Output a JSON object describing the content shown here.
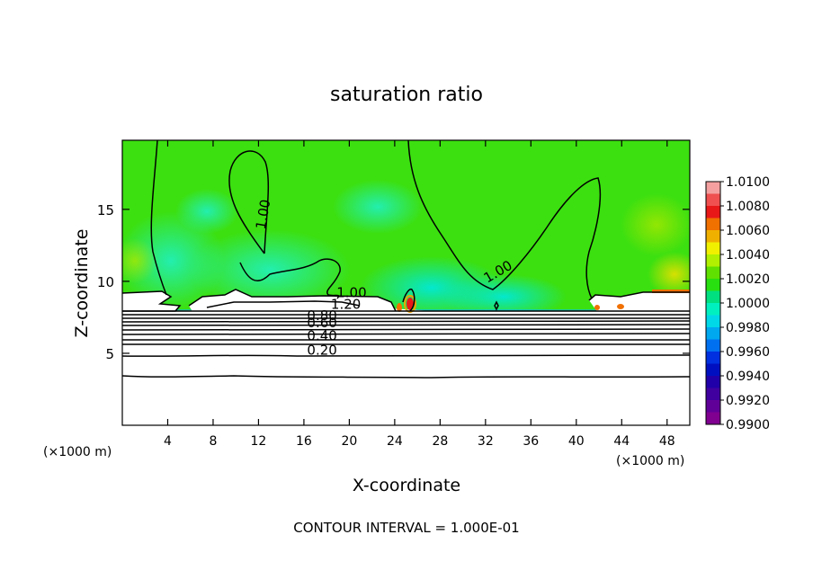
{
  "chart_data": {
    "type": "heatmap",
    "title": "saturation ratio",
    "xlabel": "X-coordinate",
    "ylabel": "Z-coordinate",
    "x_unit_label": "(×1000 m)",
    "z_unit_label": "(×1000 m)",
    "footer": "CONTOUR INTERVAL = 1.000E-01",
    "xlim": [
      0,
      50
    ],
    "ylim": [
      0,
      19.8
    ],
    "x_ticks": [
      4,
      8,
      12,
      16,
      20,
      24,
      28,
      32,
      36,
      40,
      44,
      48
    ],
    "y_ticks": [
      5,
      10,
      15
    ],
    "contour_labels": [
      {
        "text": "1.00",
        "x": 12.8,
        "z": 14.6,
        "rotate": -80
      },
      {
        "text": "1.00",
        "x": 33.3,
        "z": 10.4,
        "rotate": -30
      },
      {
        "text": "1.00",
        "x": 20.2,
        "z": 8.9,
        "rotate": 0
      },
      {
        "text": "1.20",
        "x": 19.7,
        "z": 8.1,
        "rotate": 0
      },
      {
        "text": "0.80",
        "x": 17.6,
        "z": 7.3,
        "rotate": 0
      },
      {
        "text": "0.60",
        "x": 17.6,
        "z": 6.8,
        "rotate": 0
      },
      {
        "text": "0.40",
        "x": 17.6,
        "z": 5.9,
        "rotate": 0
      },
      {
        "text": "0.20",
        "x": 17.6,
        "z": 4.9,
        "rotate": 0
      }
    ],
    "colorbar": {
      "labels": [
        "1.0100",
        "1.0080",
        "1.0060",
        "1.0040",
        "1.0020",
        "1.0000",
        "0.9980",
        "0.9960",
        "0.9940",
        "0.9920",
        "0.9900"
      ],
      "colors": [
        "#f4a0a0",
        "#f05050",
        "#e81818",
        "#f07000",
        "#f0b000",
        "#f0f000",
        "#b0f000",
        "#60e000",
        "#28e010",
        "#00e080",
        "#00f0c0",
        "#00d8e8",
        "#00a8f0",
        "#0070f0",
        "#0030e0",
        "#0010c0",
        "#2000a8",
        "#4000a0",
        "#600098",
        "#800090"
      ]
    }
  }
}
